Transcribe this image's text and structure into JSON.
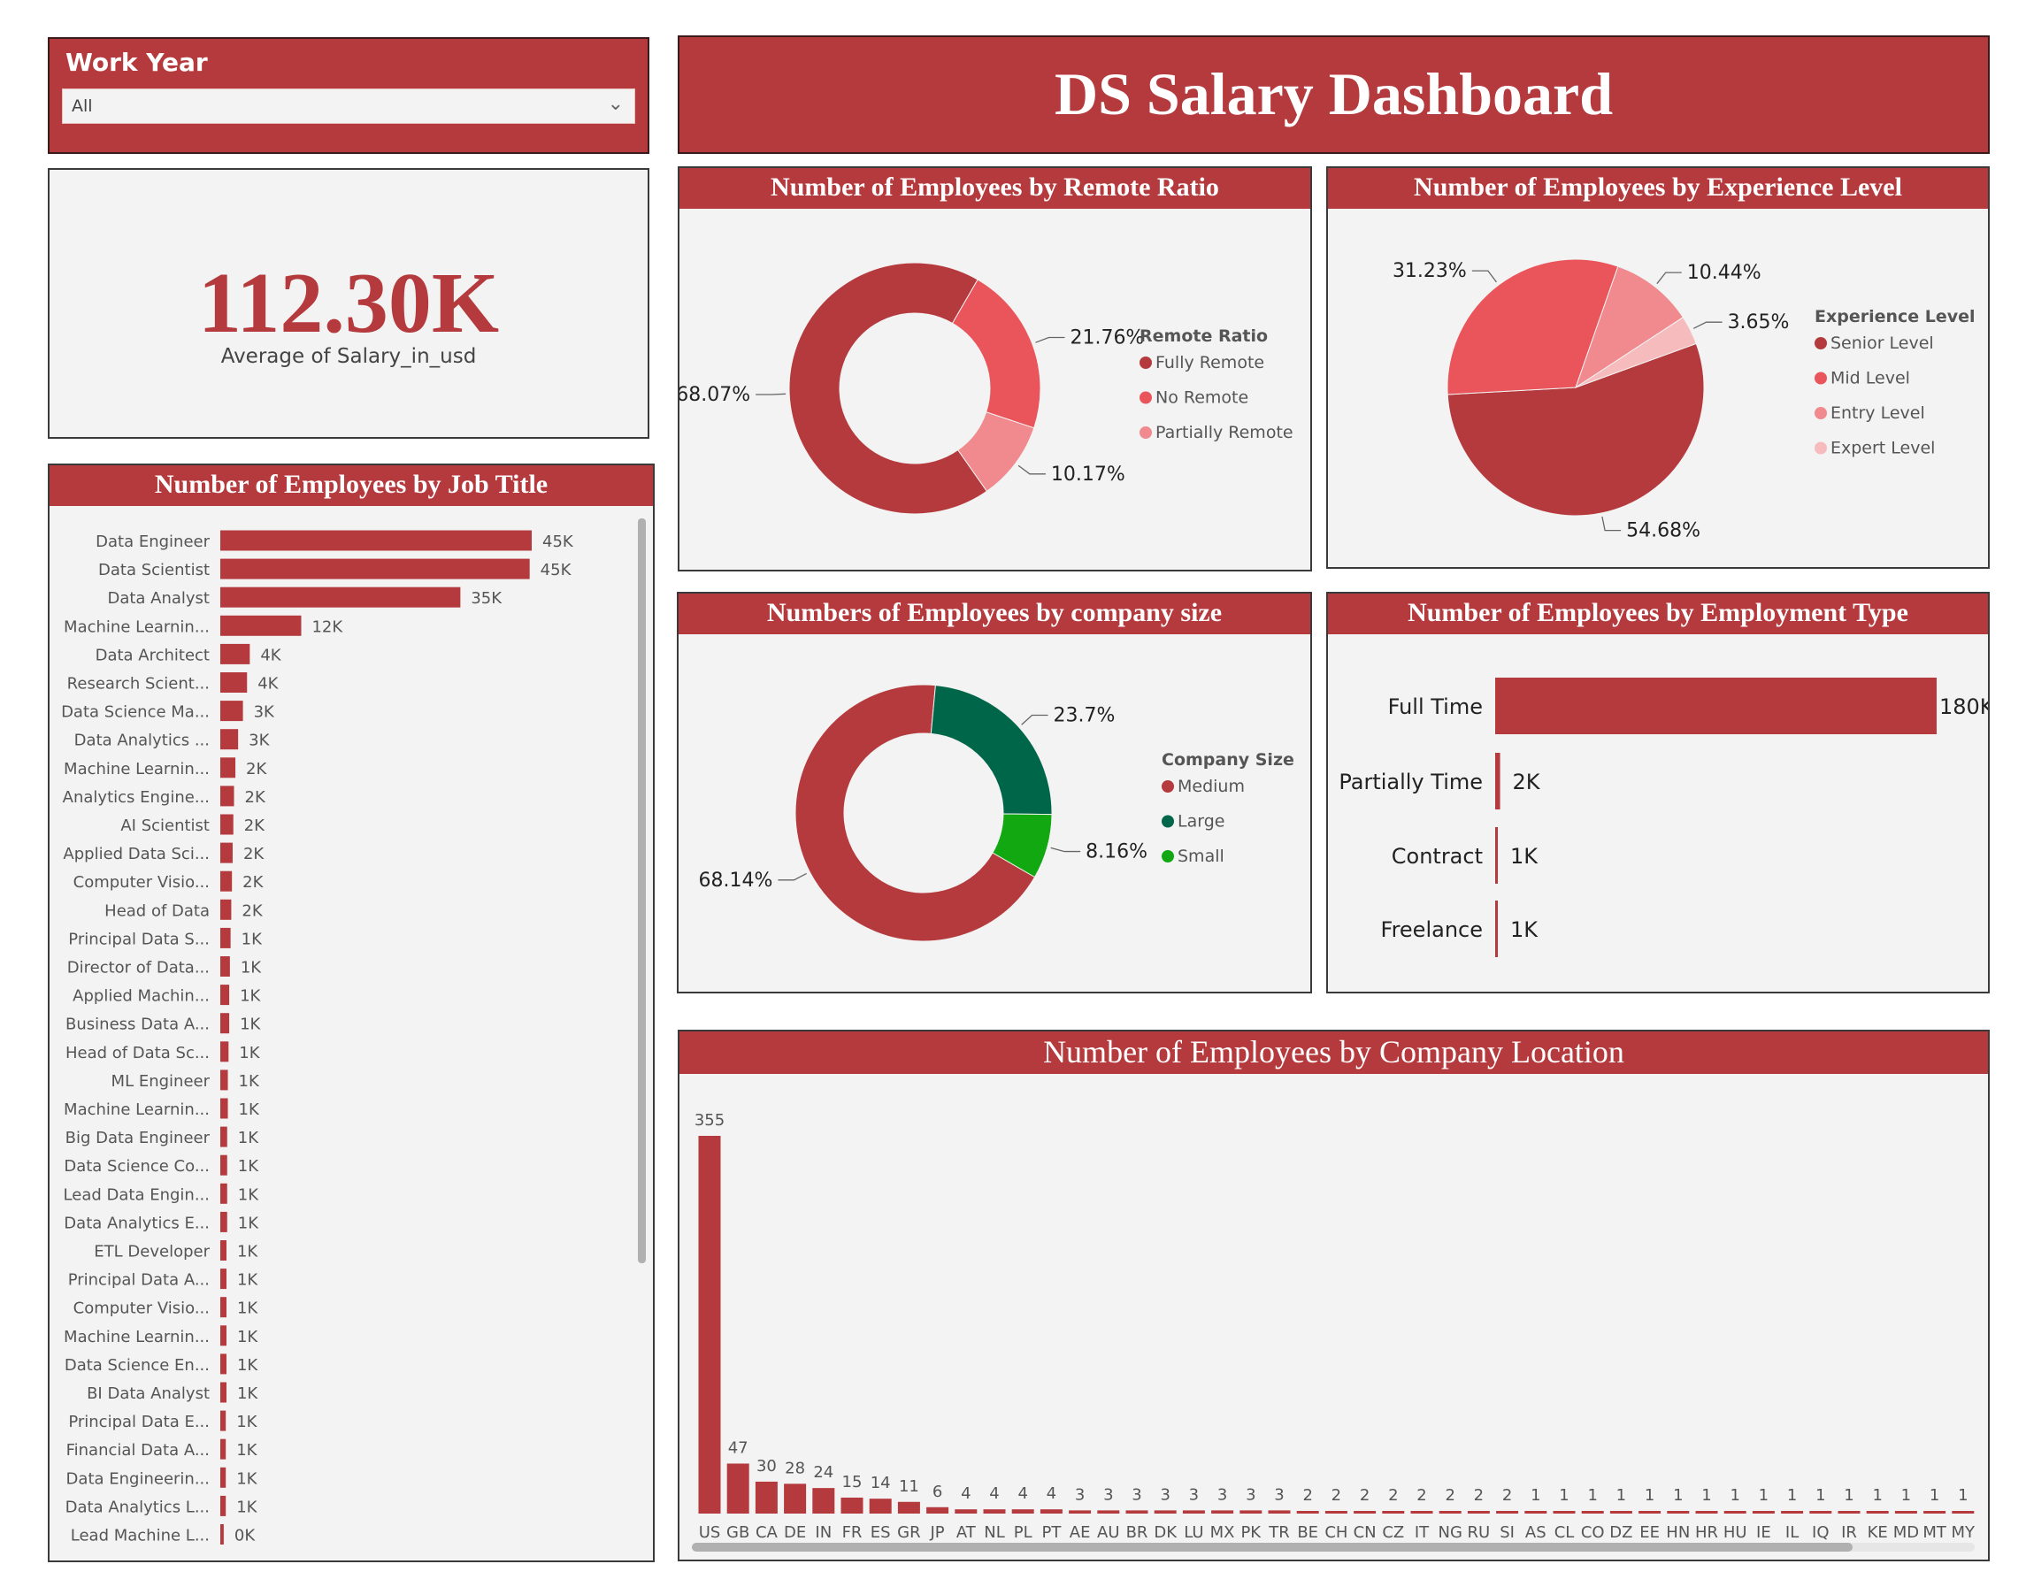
{
  "filter": {
    "title": "Work Year",
    "value": "All",
    "icon": "chevron-down-icon"
  },
  "header": {
    "title": "DS Salary Dashboard"
  },
  "kpi": {
    "value": "112.30K",
    "label": "Average of Salary_in_usd"
  },
  "colors": {
    "brand_red": "#b53a3d",
    "mid_red": "#e9555a",
    "light_red": "#f08a8e",
    "pale_red": "#f6bcbd",
    "dark_green": "#00664a",
    "green": "#12a812",
    "panel_bg": "#f3f3f3"
  },
  "chart_data": [
    {
      "type": "bar",
      "orientation": "horizontal",
      "title": "Number of Employees by Job Title",
      "categories": [
        "Data Engineer",
        "Data Scientist",
        "Data Analyst",
        "Machine Learnin...",
        "Data Architect",
        "Research Scient...",
        "Data Science Ma...",
        "Data Analytics ...",
        "Machine Learnin...",
        "Analytics Engine...",
        "AI Scientist",
        "Applied Data Sci...",
        "Computer Visio...",
        "Head of Data",
        "Principal Data S...",
        "Director of Data...",
        "Applied Machin...",
        "Business Data A...",
        "Head of Data Sc...",
        "ML Engineer",
        "Machine Learnin...",
        "Big Data Engineer",
        "Data Science Co...",
        "Lead Data Engin...",
        "Data Analytics E...",
        "ETL Developer",
        "Principal Data A...",
        "Computer Visio...",
        "Machine Learnin...",
        "Data Science En...",
        "BI Data Analyst",
        "Principal Data E...",
        "Financial Data A...",
        "Data Engineerin...",
        "Data Analytics L...",
        "Lead Machine L..."
      ],
      "values": [
        45.4,
        45.1,
        35.0,
        11.8,
        4.3,
        3.9,
        3.3,
        2.6,
        2.2,
        2.0,
        1.9,
        1.8,
        1.7,
        1.6,
        1.5,
        1.4,
        1.3,
        1.3,
        1.2,
        1.1,
        1.1,
        1.0,
        1.0,
        1.0,
        1.0,
        0.9,
        0.9,
        0.9,
        0.9,
        0.9,
        0.9,
        0.8,
        0.8,
        0.8,
        0.8,
        0.5
      ],
      "value_unit": "K",
      "data_labels": [
        "45K",
        "45K",
        "35K",
        "12K",
        "4K",
        "4K",
        "3K",
        "3K",
        "2K",
        "2K",
        "2K",
        "2K",
        "2K",
        "2K",
        "1K",
        "1K",
        "1K",
        "1K",
        "1K",
        "1K",
        "1K",
        "1K",
        "1K",
        "1K",
        "1K",
        "1K",
        "1K",
        "1K",
        "1K",
        "1K",
        "1K",
        "1K",
        "1K",
        "1K",
        "1K",
        "0K"
      ]
    },
    {
      "type": "pie",
      "donut": true,
      "title": "Number of Employees by Remote Ratio",
      "legend_title": "Remote Ratio",
      "legend": "right",
      "slices": [
        {
          "label": "Fully Remote",
          "value": 68.07,
          "display": "68.07%",
          "color": "#b53a3d"
        },
        {
          "label": "No Remote",
          "value": 21.76,
          "display": "21.76%",
          "color": "#e9555a"
        },
        {
          "label": "Partially Remote",
          "value": 10.17,
          "display": "10.17%",
          "color": "#f08a8e"
        }
      ]
    },
    {
      "type": "pie",
      "donut": false,
      "title": "Number of Employees by Experience Level",
      "legend_title": "Experience Level",
      "legend": "right",
      "slices": [
        {
          "label": "Senior Level",
          "value": 54.68,
          "display": "54.68%",
          "color": "#b53a3d"
        },
        {
          "label": "Mid Level",
          "value": 31.23,
          "display": "31.23%",
          "color": "#e9555a"
        },
        {
          "label": "Entry Level",
          "value": 10.44,
          "display": "10.44%",
          "color": "#f08a8e"
        },
        {
          "label": "Expert Level",
          "value": 3.65,
          "display": "3.65%",
          "color": "#f6bcbd"
        }
      ]
    },
    {
      "type": "pie",
      "donut": true,
      "title": "Numbers of Employees by company size",
      "legend_title": "Company Size",
      "legend": "right",
      "slices": [
        {
          "label": "Medium",
          "value": 68.14,
          "display": "68.14%",
          "color": "#b53a3d"
        },
        {
          "label": "Large",
          "value": 23.7,
          "display": "23.7%",
          "color": "#00664a"
        },
        {
          "label": "Small",
          "value": 8.16,
          "display": "8.16%",
          "color": "#12a812"
        }
      ]
    },
    {
      "type": "bar",
      "orientation": "horizontal",
      "title": "Number of Employees by Employment Type",
      "categories": [
        "Full Time",
        "Partially Time",
        "Contract",
        "Freelance"
      ],
      "values": [
        180,
        2,
        1,
        1
      ],
      "value_unit": "K",
      "data_labels": [
        "180K",
        "2K",
        "1K",
        "1K"
      ]
    },
    {
      "type": "bar",
      "orientation": "vertical",
      "title": "Number of Employees by Company Location",
      "categories": [
        "US",
        "GB",
        "CA",
        "DE",
        "IN",
        "FR",
        "ES",
        "GR",
        "JP",
        "AT",
        "NL",
        "PL",
        "PT",
        "AE",
        "AU",
        "BR",
        "DK",
        "LU",
        "MX",
        "PK",
        "TR",
        "BE",
        "CH",
        "CN",
        "CZ",
        "IT",
        "NG",
        "RU",
        "SI",
        "AS",
        "CL",
        "CO",
        "DZ",
        "EE",
        "HN",
        "HR",
        "HU",
        "IE",
        "IL",
        "IQ",
        "IR",
        "KE",
        "MD",
        "MT",
        "MY"
      ],
      "values": [
        355,
        47,
        30,
        28,
        24,
        15,
        14,
        11,
        6,
        4,
        4,
        4,
        4,
        3,
        3,
        3,
        3,
        3,
        3,
        3,
        3,
        2,
        2,
        2,
        2,
        2,
        2,
        2,
        2,
        1,
        1,
        1,
        1,
        1,
        1,
        1,
        1,
        1,
        1,
        1,
        1,
        1,
        1,
        1,
        1
      ]
    }
  ]
}
